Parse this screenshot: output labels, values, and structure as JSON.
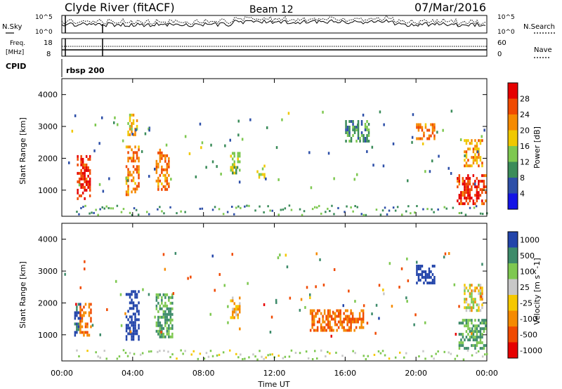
{
  "header": {
    "title": "Clyde River (fitACF)",
    "beam": "Beam 12",
    "date": "07/Mar/2016"
  },
  "top_panels": {
    "nsky_label": "N.Sky",
    "nsky_ticks": [
      "10^5",
      "10^0"
    ],
    "nsearch_label": "N.Search",
    "nsearch_ticks": [
      "10^5",
      "10^0"
    ],
    "freq_label_1": "Freq.",
    "freq_label_2": "[MHz]",
    "freq_ticks": [
      "18",
      "8"
    ],
    "nave_label": "Nave",
    "nave_ticks": [
      "60",
      "0"
    ],
    "cpid_label": "CPID",
    "cpid_value": "rbsp 200"
  },
  "axes": {
    "xlabel": "Time UT",
    "ylabel_html": "Slant Range [km]",
    "x_ticks": [
      "00:00",
      "04:00",
      "08:00",
      "12:00",
      "16:00",
      "20:00",
      "00:00"
    ],
    "y_ticks": [
      "1000",
      "2000",
      "3000",
      "4000"
    ]
  },
  "colorbars": {
    "power": {
      "label": "Power [dB]",
      "ticks": [
        "4",
        "8",
        "12",
        "16",
        "20",
        "24",
        "28"
      ],
      "colors": [
        "#1414e6",
        "#2d4fa8",
        "#3b8c5a",
        "#7ec850",
        "#f0c800",
        "#f58a00",
        "#f04a00",
        "#e60000"
      ]
    },
    "velocity": {
      "label": "Velocity [m s^-1]",
      "ticks": [
        "1000",
        "500",
        "100",
        "25",
        "-25",
        "-100",
        "-500",
        "-1000"
      ],
      "colors": [
        "#2244aa",
        "#3d8b6a",
        "#7ec850",
        "#c8c8c8",
        "#f5c800",
        "#f58a00",
        "#f04a00",
        "#e60000"
      ]
    }
  },
  "chart_data": [
    {
      "type": "heatmap",
      "title": "Power [dB]",
      "xlabel": "Time UT",
      "ylabel": "Slant Range [km]",
      "xlim": [
        0,
        24
      ],
      "ylim": [
        180,
        4500
      ],
      "zlim": [
        0,
        30
      ],
      "echo_regions_power": [
        {
          "t": [
            0.85,
            1.6
          ],
          "r": [
            700,
            2100
          ],
          "v": 26
        },
        {
          "t": [
            3.6,
            4.35
          ],
          "r": [
            900,
            2400
          ],
          "v": 22
        },
        {
          "t": [
            3.7,
            4.2
          ],
          "r": [
            2700,
            3400
          ],
          "v": 18
        },
        {
          "t": [
            5.3,
            6.0
          ],
          "r": [
            1000,
            2300
          ],
          "v": 22
        },
        {
          "t": [
            9.5,
            10.0
          ],
          "r": [
            1500,
            2200
          ],
          "v": 14
        },
        {
          "t": [
            11.0,
            11.4
          ],
          "r": [
            1400,
            1800
          ],
          "v": 14
        },
        {
          "t": [
            16.0,
            17.3
          ],
          "r": [
            2500,
            3200
          ],
          "v": 10
        },
        {
          "t": [
            20.0,
            21.0
          ],
          "r": [
            2600,
            3100
          ],
          "v": 22
        },
        {
          "t": [
            22.3,
            23.9
          ],
          "r": [
            600,
            1500
          ],
          "v": 26
        },
        {
          "t": [
            22.7,
            23.7
          ],
          "r": [
            1800,
            2600
          ],
          "v": 20
        }
      ]
    },
    {
      "type": "heatmap",
      "title": "Velocity [m s^-1]",
      "xlabel": "Time UT",
      "ylabel": "Slant Range [km]",
      "xlim": [
        0,
        24
      ],
      "ylim": [
        180,
        4500
      ],
      "zlim": [
        -1000,
        1000
      ],
      "echo_regions_velocity": [
        {
          "t": [
            0.7,
            1.0
          ],
          "r": [
            1000,
            2000
          ],
          "v": 800
        },
        {
          "t": [
            1.0,
            1.6
          ],
          "r": [
            1000,
            2000
          ],
          "v": -300
        },
        {
          "t": [
            3.6,
            4.3
          ],
          "r": [
            900,
            2400
          ],
          "v": 900
        },
        {
          "t": [
            5.3,
            6.2
          ],
          "r": [
            900,
            2300
          ],
          "v": 300
        },
        {
          "t": [
            9.5,
            10.0
          ],
          "r": [
            1500,
            2200
          ],
          "v": -100
        },
        {
          "t": [
            14.0,
            17.0
          ],
          "r": [
            1100,
            1800
          ],
          "v": -300
        },
        {
          "t": [
            20.0,
            21.0
          ],
          "r": [
            2600,
            3200
          ],
          "v": 900
        },
        {
          "t": [
            22.4,
            23.9
          ],
          "r": [
            600,
            1500
          ],
          "v": 300
        },
        {
          "t": [
            22.7,
            23.7
          ],
          "r": [
            1800,
            2600
          ],
          "v": 25
        }
      ]
    }
  ]
}
